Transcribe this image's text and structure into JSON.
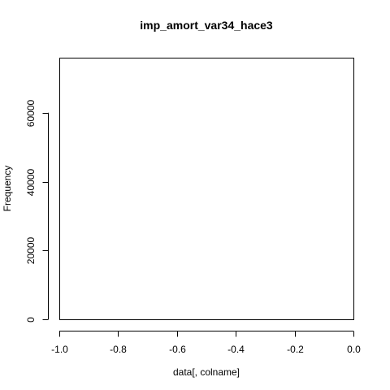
{
  "chart_data": {
    "type": "bar",
    "title": "imp_amort_var34_hace3",
    "xlabel": "data[, colname]",
    "ylabel": "Frequency",
    "xlim": [
      -1.0,
      0.0
    ],
    "ylim": [
      0,
      76000
    ],
    "x_ticks": [
      -1.0,
      -0.8,
      -0.6,
      -0.4,
      -0.2,
      0.0
    ],
    "x_tick_labels": [
      "-1.0",
      "-0.8",
      "-0.6",
      "-0.4",
      "-0.2",
      "0.0"
    ],
    "y_ticks": [
      0,
      20000,
      40000,
      60000
    ],
    "y_tick_labels": [
      "0",
      "20000",
      "40000",
      "60000"
    ],
    "values": [],
    "grid": false
  }
}
